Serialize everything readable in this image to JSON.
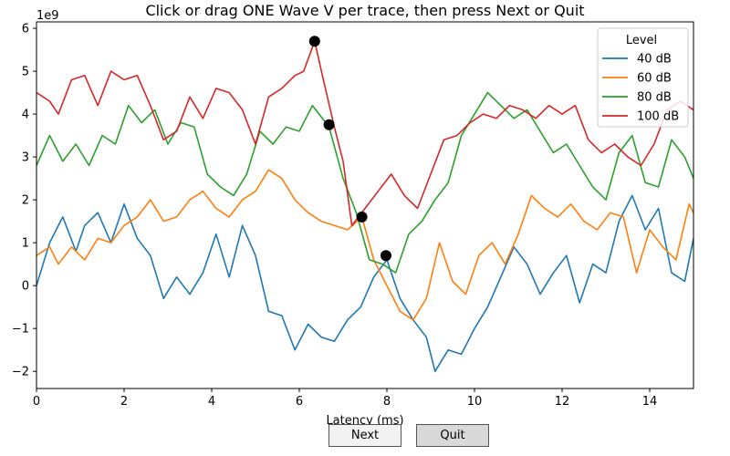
{
  "window": {
    "next_label": "Next",
    "quit_label": "Quit"
  },
  "chart_data": {
    "type": "line",
    "title": "Click or drag ONE Wave V per trace, then press Next or Quit",
    "xlabel": "Latency (ms)",
    "ylabel": "",
    "y_offset_text": "1e9",
    "xlim": [
      0,
      15
    ],
    "ylim": [
      -2.4,
      6.15
    ],
    "x_ticks": [
      0,
      2,
      4,
      6,
      8,
      10,
      12,
      14
    ],
    "y_ticks": [
      -2,
      -1,
      0,
      1,
      2,
      3,
      4,
      5,
      6
    ],
    "y_tick_labels": [
      "−2",
      "−1",
      "0",
      "1",
      "2",
      "3",
      "4",
      "5",
      "6"
    ],
    "grid": false,
    "legend": {
      "title": "Level",
      "placement": "top-right"
    },
    "series": [
      {
        "name": "40 dB",
        "color": "#1f77b4",
        "x": [
          0,
          0.3,
          0.6,
          0.9,
          1.1,
          1.4,
          1.7,
          2.0,
          2.3,
          2.6,
          2.9,
          3.2,
          3.5,
          3.8,
          4.1,
          4.4,
          4.7,
          5.0,
          5.3,
          5.6,
          5.9,
          6.2,
          6.5,
          6.8,
          7.1,
          7.4,
          7.7,
          8.0,
          8.3,
          8.6,
          8.9,
          9.1,
          9.4,
          9.7,
          10.0,
          10.3,
          10.6,
          10.9,
          11.2,
          11.5,
          11.8,
          12.1,
          12.4,
          12.7,
          13.0,
          13.3,
          13.6,
          13.9,
          14.2,
          14.5,
          14.8,
          15.0
        ],
        "y": [
          0.0,
          1.0,
          1.6,
          0.8,
          1.4,
          1.7,
          1.0,
          1.9,
          1.1,
          0.7,
          -0.3,
          0.2,
          -0.2,
          0.3,
          1.2,
          0.2,
          1.4,
          0.7,
          -0.6,
          -0.7,
          -1.5,
          -0.9,
          -1.2,
          -1.3,
          -0.8,
          -0.5,
          0.2,
          0.6,
          -0.3,
          -0.8,
          -1.2,
          -2.0,
          -1.5,
          -1.6,
          -1.0,
          -0.5,
          0.2,
          0.9,
          0.5,
          -0.2,
          0.3,
          0.7,
          -0.4,
          0.5,
          0.3,
          1.5,
          2.1,
          1.3,
          1.8,
          0.3,
          0.1,
          1.1
        ]
      },
      {
        "name": "60 dB",
        "color": "#ff7f0e",
        "x": [
          0,
          0.3,
          0.5,
          0.8,
          1.1,
          1.4,
          1.7,
          2.0,
          2.3,
          2.6,
          2.9,
          3.2,
          3.5,
          3.8,
          4.1,
          4.4,
          4.7,
          5.0,
          5.3,
          5.6,
          5.9,
          6.2,
          6.5,
          6.8,
          7.1,
          7.43,
          7.7,
          8.0,
          8.3,
          8.6,
          8.9,
          9.2,
          9.5,
          9.8,
          10.1,
          10.4,
          10.7,
          11.0,
          11.3,
          11.6,
          11.9,
          12.2,
          12.5,
          12.8,
          13.1,
          13.4,
          13.7,
          14.0,
          14.3,
          14.6,
          14.9,
          15.0
        ],
        "y": [
          0.7,
          0.9,
          0.5,
          0.9,
          0.6,
          1.1,
          1.0,
          1.4,
          1.6,
          2.0,
          1.5,
          1.6,
          2.0,
          2.2,
          1.8,
          1.6,
          2.0,
          2.2,
          2.7,
          2.5,
          2.0,
          1.7,
          1.5,
          1.4,
          1.3,
          1.6,
          0.6,
          0.0,
          -0.6,
          -0.8,
          -0.3,
          1.0,
          0.1,
          -0.2,
          0.7,
          1.0,
          0.5,
          1.2,
          2.1,
          1.8,
          1.6,
          1.9,
          1.5,
          1.3,
          1.7,
          1.6,
          0.3,
          1.3,
          0.9,
          0.6,
          1.9,
          1.7
        ]
      },
      {
        "name": "80 dB",
        "color": "#2ca02c",
        "x": [
          0,
          0.3,
          0.6,
          0.9,
          1.2,
          1.5,
          1.8,
          2.1,
          2.4,
          2.7,
          3.0,
          3.3,
          3.6,
          3.9,
          4.2,
          4.5,
          4.8,
          5.1,
          5.4,
          5.7,
          6.0,
          6.3,
          6.68,
          7.0,
          7.3,
          7.6,
          7.9,
          8.2,
          8.5,
          8.8,
          9.1,
          9.4,
          9.7,
          10.0,
          10.3,
          10.6,
          10.9,
          11.2,
          11.5,
          11.8,
          12.1,
          12.4,
          12.7,
          13.0,
          13.3,
          13.6,
          13.9,
          14.2,
          14.5,
          14.8,
          15.0
        ],
        "y": [
          2.8,
          3.5,
          2.9,
          3.3,
          2.8,
          3.5,
          3.3,
          4.2,
          3.8,
          4.1,
          3.3,
          3.8,
          3.7,
          2.6,
          2.3,
          2.1,
          2.6,
          3.6,
          3.3,
          3.7,
          3.6,
          4.2,
          3.7,
          2.5,
          1.7,
          0.6,
          0.5,
          0.3,
          1.2,
          1.5,
          2.0,
          2.4,
          3.5,
          4.0,
          4.5,
          4.2,
          3.9,
          4.1,
          3.6,
          3.1,
          3.3,
          2.8,
          2.3,
          2.0,
          3.1,
          3.5,
          2.4,
          2.3,
          3.4,
          3.0,
          2.5
        ]
      },
      {
        "name": "100 dB",
        "color": "#d62728",
        "x": [
          0,
          0.3,
          0.5,
          0.8,
          1.1,
          1.4,
          1.7,
          2.0,
          2.3,
          2.6,
          2.9,
          3.2,
          3.5,
          3.8,
          4.1,
          4.4,
          4.7,
          5.0,
          5.3,
          5.6,
          5.9,
          6.1,
          6.35,
          6.55,
          6.8,
          7.0,
          7.2,
          7.5,
          7.8,
          8.1,
          8.4,
          8.7,
          9.0,
          9.3,
          9.6,
          9.9,
          10.2,
          10.5,
          10.8,
          11.1,
          11.4,
          11.7,
          12.0,
          12.3,
          12.6,
          12.9,
          13.2,
          13.5,
          13.8,
          14.1,
          14.4,
          14.7,
          15.0
        ],
        "y": [
          4.5,
          4.3,
          4.0,
          4.8,
          4.9,
          4.2,
          5.0,
          4.8,
          4.9,
          4.2,
          3.4,
          3.6,
          4.4,
          3.9,
          4.6,
          4.5,
          4.1,
          3.3,
          4.4,
          4.6,
          4.9,
          5.0,
          5.7,
          4.8,
          3.7,
          2.9,
          1.4,
          1.8,
          2.2,
          2.6,
          2.1,
          1.8,
          2.6,
          3.4,
          3.5,
          3.8,
          4.0,
          3.9,
          4.2,
          4.1,
          3.9,
          4.2,
          4.0,
          4.2,
          3.4,
          3.1,
          3.3,
          3.0,
          2.8,
          3.3,
          4.1,
          4.3,
          4.1
        ]
      }
    ],
    "markers": [
      {
        "series": "100 dB",
        "x": 6.35,
        "y": 5.7
      },
      {
        "series": "80 dB",
        "x": 6.68,
        "y": 3.75
      },
      {
        "series": "60 dB",
        "x": 7.43,
        "y": 1.6
      },
      {
        "series": "40 dB",
        "x": 7.98,
        "y": 0.7
      }
    ]
  }
}
